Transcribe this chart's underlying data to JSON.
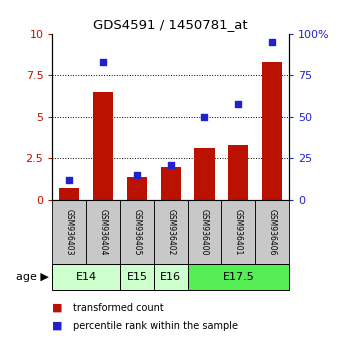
{
  "title": "GDS4591 / 1450781_at",
  "samples": [
    "GSM936403",
    "GSM936404",
    "GSM936405",
    "GSM936402",
    "GSM936400",
    "GSM936401",
    "GSM936406"
  ],
  "transformed_count": [
    0.7,
    6.5,
    1.4,
    2.0,
    3.1,
    3.3,
    8.3
  ],
  "percentile_rank": [
    12,
    83,
    15,
    21,
    50,
    58,
    95
  ],
  "age_groups": [
    {
      "label": "E14",
      "samples": [
        0,
        1
      ],
      "color": "#ccffcc"
    },
    {
      "label": "E15",
      "samples": [
        2
      ],
      "color": "#ccffcc"
    },
    {
      "label": "E16",
      "samples": [
        3
      ],
      "color": "#ccffcc"
    },
    {
      "label": "E17.5",
      "samples": [
        4,
        5,
        6
      ],
      "color": "#55ee55"
    }
  ],
  "bar_color": "#bb1100",
  "dot_color": "#2222cc",
  "yticks_left": [
    0,
    2.5,
    5,
    7.5,
    10
  ],
  "yticks_right": [
    0,
    25,
    50,
    75,
    100
  ],
  "ylim_left": [
    0,
    10
  ],
  "ylim_right": [
    0,
    100
  ],
  "sample_bg": "#c8c8c8",
  "legend_items": [
    {
      "color": "#bb1100",
      "label": "transformed count"
    },
    {
      "color": "#2222cc",
      "label": "percentile rank within the sample"
    }
  ],
  "age_label": "age"
}
